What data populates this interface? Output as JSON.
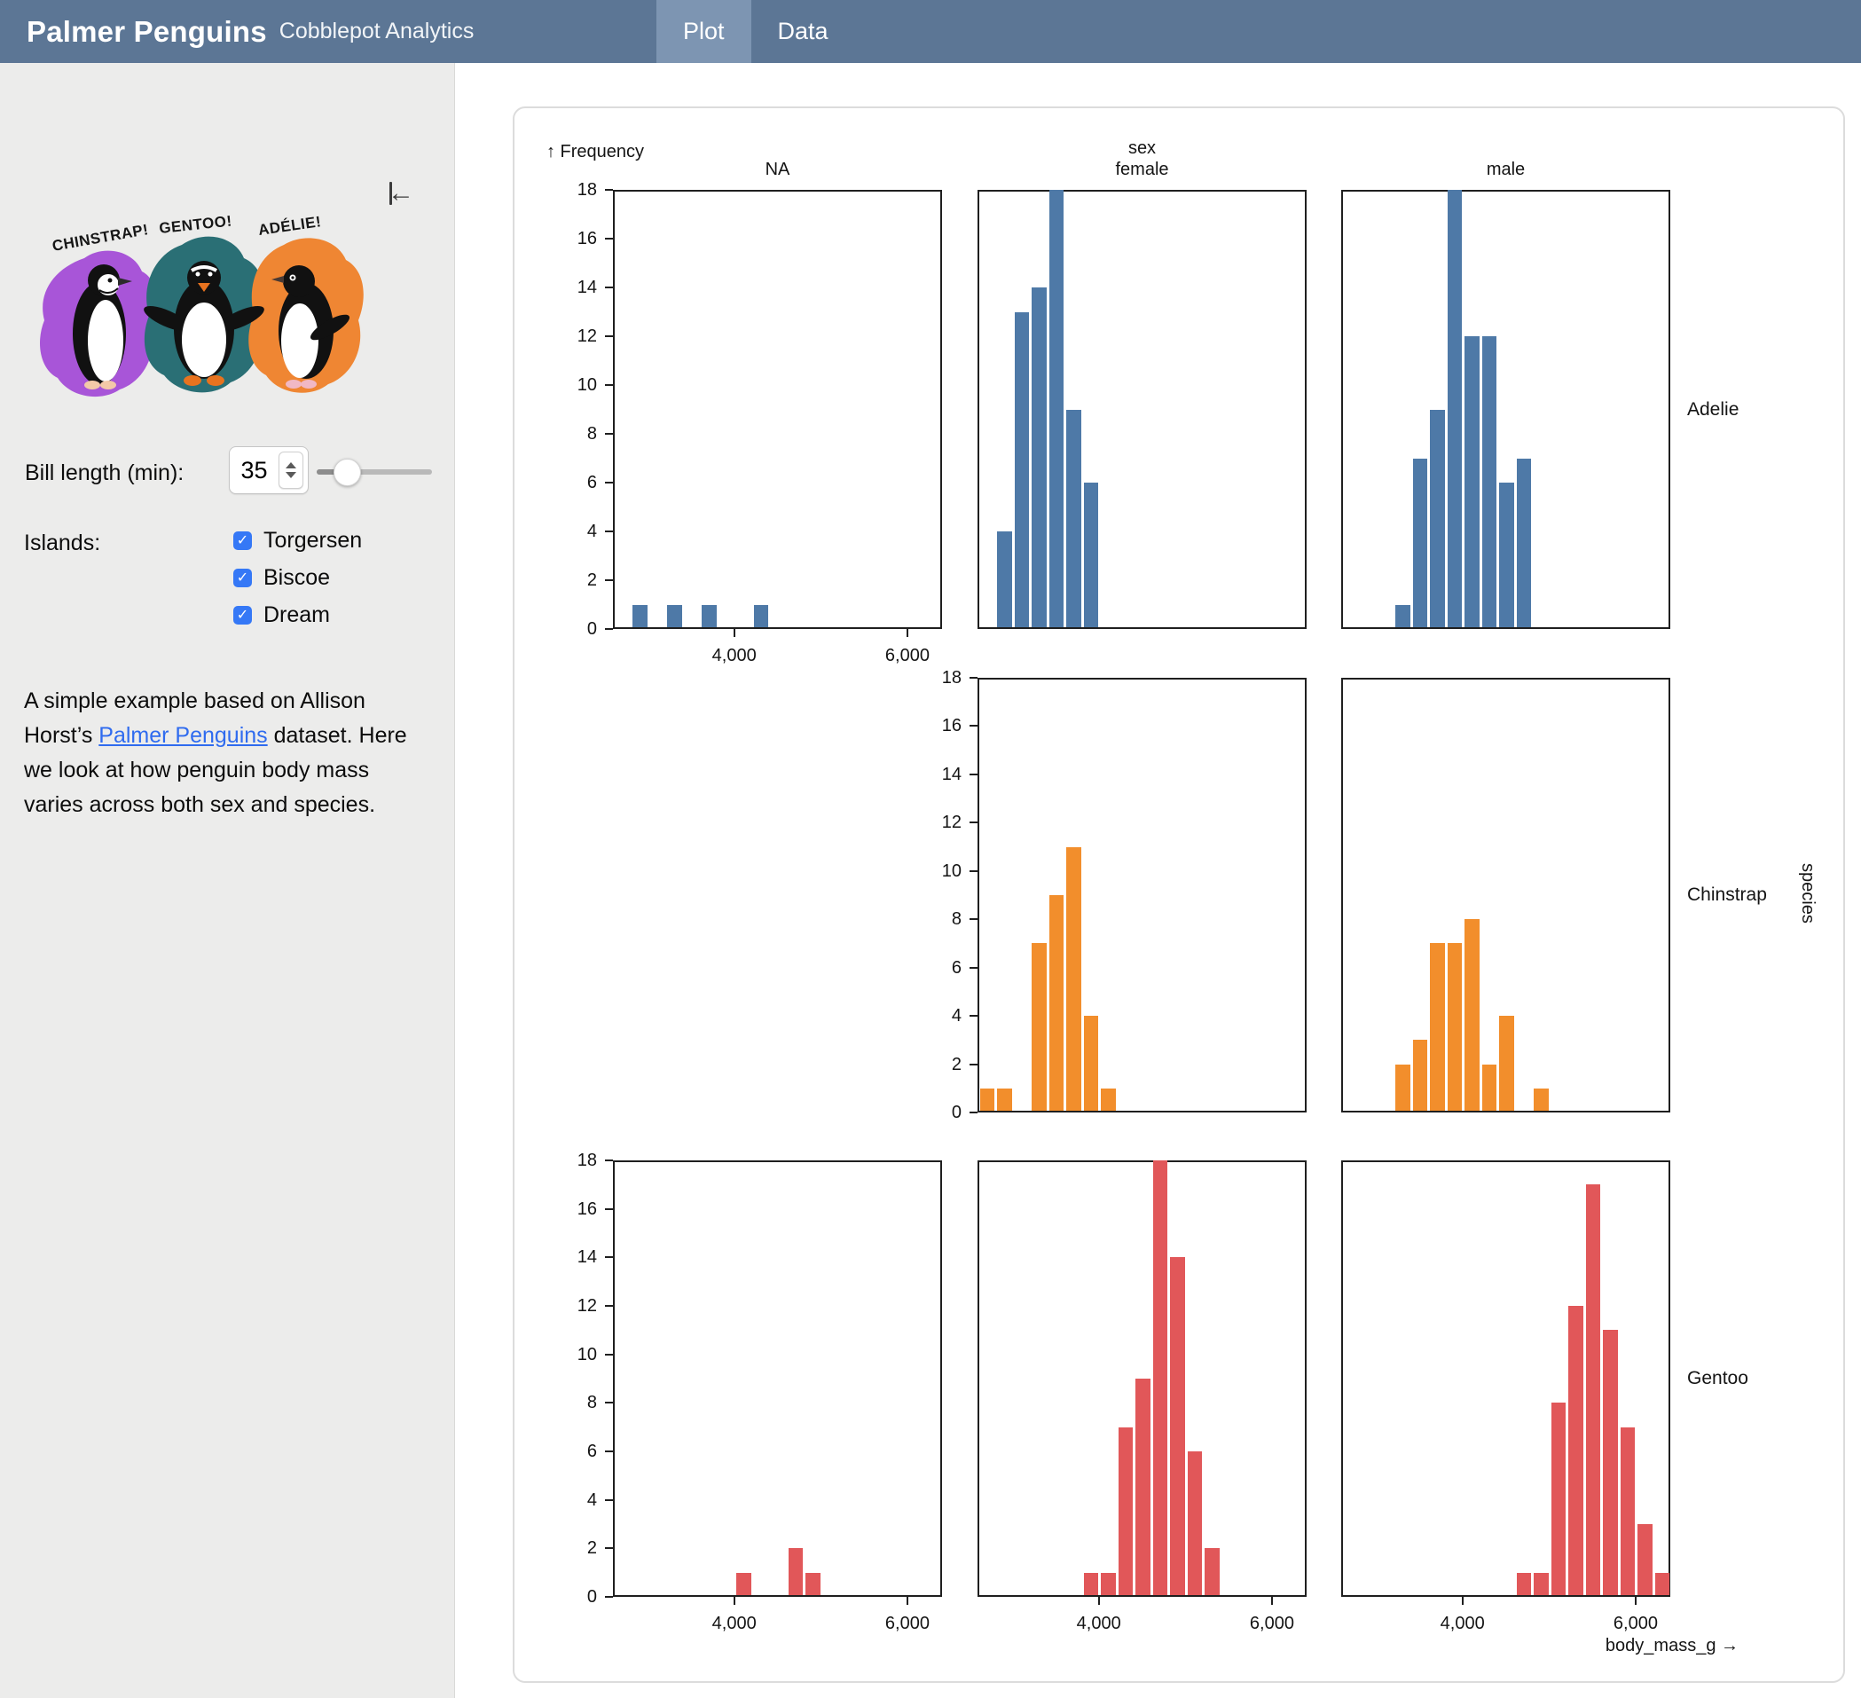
{
  "header": {
    "title": "Palmer Penguins",
    "subtitle": "Cobblepot Analytics",
    "tabs": [
      {
        "label": "Plot",
        "active": true
      },
      {
        "label": "Data",
        "active": false
      }
    ],
    "colors": {
      "bar": "#5c7695",
      "active_tab": "#7d95b2"
    }
  },
  "sidebar": {
    "artwork": {
      "labels": [
        "CHINSTRAP!",
        "GENTOO!",
        "ADÉLIE!"
      ],
      "splotch_colors": {
        "chinstrap": "#a855d8",
        "gentoo": "#2a6f75",
        "adelie": "#ef8633"
      }
    },
    "bill_length": {
      "label": "Bill length (min):",
      "value": "35"
    },
    "islands": {
      "label": "Islands:",
      "options": [
        {
          "label": "Torgersen",
          "checked": true
        },
        {
          "label": "Biscoe",
          "checked": true
        },
        {
          "label": "Dream",
          "checked": true
        }
      ]
    },
    "description": {
      "before_link": "A simple example based on Allison Horst’s ",
      "link": "Palmer Penguins",
      "after_link": " dataset. Here we look at how penguin body mass varies across both sex and species."
    },
    "checkbox_color": "#3578f6"
  },
  "chart_data": {
    "type": "bar",
    "subtype": "faceted-histogram",
    "x_field": "body_mass_g",
    "y_axis_label": "↑ Frequency",
    "x_axis_label": "body_mass_g →",
    "fx_title": "sex",
    "fx_categories": [
      "NA",
      "female",
      "male"
    ],
    "fy_title": "species",
    "fy_categories": [
      "Adelie",
      "Chinstrap",
      "Gentoo"
    ],
    "x_domain": [
      2600,
      6400
    ],
    "bin_width": 200,
    "y_domain": [
      0,
      18
    ],
    "y_tick_step": 2,
    "x_ticks": [
      4000,
      6000
    ],
    "x_tick_labels": [
      "4,000",
      "6,000"
    ],
    "grid": false,
    "series_colors": {
      "Adelie": "#4e79a7",
      "Chinstrap": "#f28e2c",
      "Gentoo": "#e15759"
    },
    "facets": [
      {
        "species": "Adelie",
        "sex": "NA",
        "present": true,
        "bins": [
          [
            2800,
            1
          ],
          [
            3200,
            1
          ],
          [
            3600,
            1
          ],
          [
            4200,
            1
          ]
        ]
      },
      {
        "species": "Adelie",
        "sex": "female",
        "present": true,
        "bins": [
          [
            2800,
            4
          ],
          [
            3000,
            13
          ],
          [
            3200,
            14
          ],
          [
            3400,
            18
          ],
          [
            3600,
            9
          ],
          [
            3800,
            6
          ]
        ]
      },
      {
        "species": "Adelie",
        "sex": "male",
        "present": true,
        "bins": [
          [
            3200,
            1
          ],
          [
            3400,
            7
          ],
          [
            3600,
            9
          ],
          [
            3800,
            18
          ],
          [
            4000,
            12
          ],
          [
            4200,
            12
          ],
          [
            4400,
            6
          ],
          [
            4600,
            7
          ]
        ]
      },
      {
        "species": "Chinstrap",
        "sex": "NA",
        "present": false,
        "bins": []
      },
      {
        "species": "Chinstrap",
        "sex": "female",
        "present": true,
        "bins": [
          [
            2600,
            1
          ],
          [
            2800,
            1
          ],
          [
            3200,
            7
          ],
          [
            3400,
            9
          ],
          [
            3600,
            11
          ],
          [
            3800,
            4
          ],
          [
            4000,
            1
          ]
        ]
      },
      {
        "species": "Chinstrap",
        "sex": "male",
        "present": true,
        "bins": [
          [
            3200,
            2
          ],
          [
            3400,
            3
          ],
          [
            3600,
            7
          ],
          [
            3800,
            7
          ],
          [
            4000,
            8
          ],
          [
            4200,
            2
          ],
          [
            4400,
            4
          ],
          [
            4800,
            1
          ]
        ]
      },
      {
        "species": "Gentoo",
        "sex": "NA",
        "present": true,
        "bins": [
          [
            4000,
            1
          ],
          [
            4600,
            2
          ],
          [
            4800,
            1
          ]
        ]
      },
      {
        "species": "Gentoo",
        "sex": "female",
        "present": true,
        "bins": [
          [
            3800,
            1
          ],
          [
            4000,
            1
          ],
          [
            4200,
            7
          ],
          [
            4400,
            9
          ],
          [
            4600,
            18
          ],
          [
            4800,
            14
          ],
          [
            5000,
            6
          ],
          [
            5200,
            2
          ]
        ]
      },
      {
        "species": "Gentoo",
        "sex": "male",
        "present": true,
        "bins": [
          [
            4600,
            1
          ],
          [
            4800,
            1
          ],
          [
            5000,
            8
          ],
          [
            5200,
            12
          ],
          [
            5400,
            17
          ],
          [
            5600,
            11
          ],
          [
            5800,
            7
          ],
          [
            6000,
            3
          ],
          [
            6200,
            1
          ]
        ]
      }
    ]
  }
}
